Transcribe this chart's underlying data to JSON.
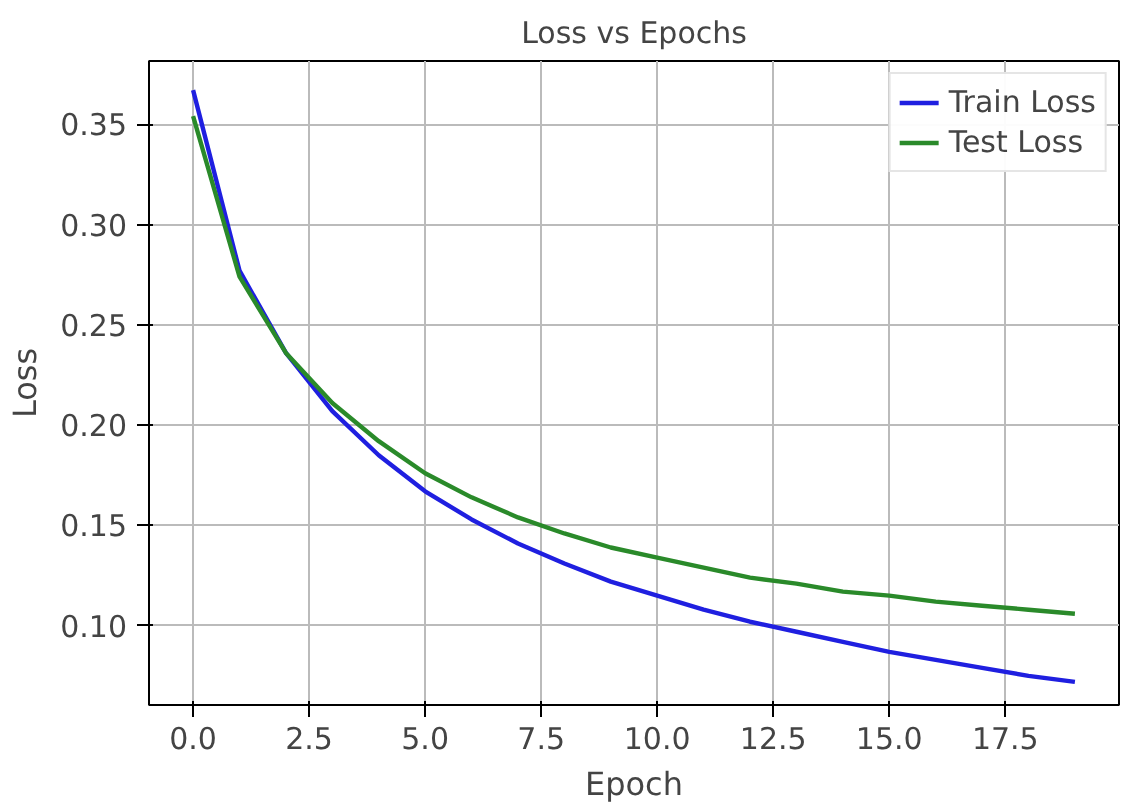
{
  "chart_data": {
    "type": "line",
    "title": "Loss vs Epochs",
    "xlabel": "Epoch",
    "ylabel": "Loss",
    "x": [
      0,
      1,
      2,
      3,
      4,
      5,
      6,
      7,
      8,
      9,
      10,
      11,
      12,
      13,
      14,
      15,
      16,
      17,
      18,
      19
    ],
    "series": [
      {
        "name": "Train Loss",
        "color": "#1f1fe0",
        "values": [
          0.367,
          0.277,
          0.236,
          0.207,
          0.185,
          0.167,
          0.153,
          0.141,
          0.131,
          0.122,
          0.115,
          0.108,
          0.102,
          0.097,
          0.092,
          0.087,
          0.083,
          0.079,
          0.075,
          0.072
        ]
      },
      {
        "name": "Test Loss",
        "color": "#2a8a2a",
        "values": [
          0.354,
          0.274,
          0.236,
          0.211,
          0.192,
          0.176,
          0.164,
          0.154,
          0.146,
          0.139,
          0.134,
          0.129,
          0.124,
          0.121,
          0.117,
          0.115,
          0.112,
          0.11,
          0.108,
          0.106
        ]
      }
    ],
    "xlim": [
      -0.95,
      19.95
    ],
    "ylim": [
      0.0605,
      0.3815
    ],
    "xticks": [
      {
        "value": 0,
        "label": "0.0"
      },
      {
        "value": 2.5,
        "label": "2.5"
      },
      {
        "value": 5,
        "label": "5.0"
      },
      {
        "value": 7.5,
        "label": "7.5"
      },
      {
        "value": 10,
        "label": "10.0"
      },
      {
        "value": 12.5,
        "label": "12.5"
      },
      {
        "value": 15,
        "label": "15.0"
      },
      {
        "value": 17.5,
        "label": "17.5"
      }
    ],
    "yticks": [
      {
        "value": 0.1,
        "label": "0.10"
      },
      {
        "value": 0.15,
        "label": "0.15"
      },
      {
        "value": 0.2,
        "label": "0.20"
      },
      {
        "value": 0.25,
        "label": "0.25"
      },
      {
        "value": 0.3,
        "label": "0.30"
      },
      {
        "value": 0.35,
        "label": "0.35"
      }
    ],
    "grid": true,
    "legend": "top right",
    "line_style": "solid",
    "marker": "none"
  }
}
